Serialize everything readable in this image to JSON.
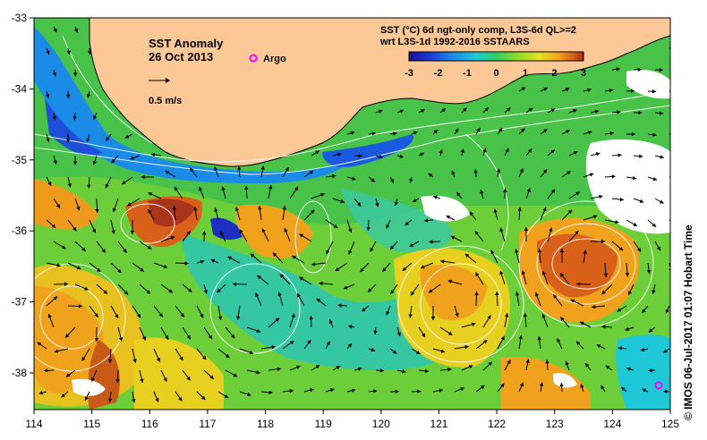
{
  "map": {
    "title": "SST Anomaly",
    "date": "26 Oct 2013",
    "argo_label": "Argo",
    "vector_scale_label": "0.5 m/s",
    "colorbar_title_1": "SST (°C) 6d ngt-only comp, L3S-6d QL>=2",
    "colorbar_title_2": "wrt L3S-1d 1992-2016 SSTAARS",
    "colorbar_ticks": [
      "-3",
      "-2",
      "-1",
      "0",
      "1",
      "2",
      "3"
    ],
    "colorbar_colors": [
      "#1c0a9a",
      "#1d3bd0",
      "#1a8ce8",
      "#1ec8d6",
      "#2fcf68",
      "#8fdb22",
      "#e8e020",
      "#f0a21c",
      "#d86018",
      "#a02a10"
    ],
    "x_ticks": [
      "114",
      "115",
      "116",
      "117",
      "118",
      "119",
      "120",
      "121",
      "122",
      "123",
      "124",
      "125"
    ],
    "y_ticks": [
      "-33",
      "-34",
      "-35",
      "-36",
      "-37",
      "-38"
    ],
    "land_color": "#fcc896",
    "argo_color": "#ff00ff",
    "credit": "© IMOS 06-Jul-2017 01:07 Hobart Time"
  }
}
